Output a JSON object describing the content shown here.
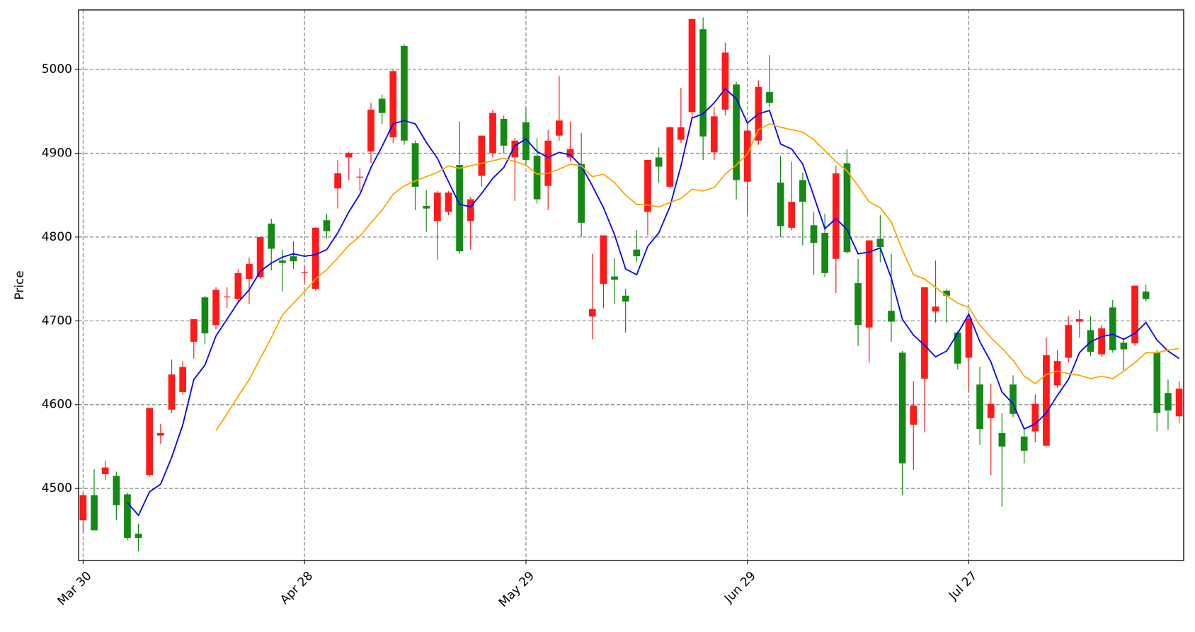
{
  "chart_data": {
    "type": "candlestick",
    "ylabel": "Price",
    "grid": true,
    "up_color": "#ff1a1a",
    "down_color": "#148a14",
    "ylim": [
      4414,
      5071
    ],
    "yticks": [
      4500,
      4600,
      4700,
      4800,
      4900,
      5000
    ],
    "categories": [
      "Mar 30",
      null,
      null,
      null,
      null,
      null,
      null,
      null,
      null,
      null,
      null,
      null,
      null,
      null,
      null,
      null,
      null,
      null,
      null,
      null,
      "Apr 28",
      null,
      null,
      null,
      null,
      null,
      null,
      null,
      null,
      null,
      null,
      null,
      null,
      null,
      null,
      null,
      null,
      null,
      null,
      null,
      "May 29",
      null,
      null,
      null,
      null,
      null,
      null,
      null,
      null,
      null,
      null,
      null,
      null,
      null,
      null,
      null,
      null,
      null,
      null,
      null,
      "Jun 29",
      null,
      null,
      null,
      null,
      null,
      null,
      null,
      null,
      null,
      null,
      null,
      null,
      null,
      null,
      null,
      null,
      null,
      null,
      null,
      "Jul 27",
      null,
      null,
      null,
      null,
      null,
      null,
      null,
      null,
      null,
      null,
      null,
      null,
      null,
      null,
      null,
      null,
      null,
      null,
      null
    ],
    "open": [
      4462,
      4492,
      4517,
      4515,
      4493,
      4446,
      4516,
      4563,
      4594,
      4615,
      4675,
      4728,
      4695,
      4728,
      4726,
      4750,
      4752,
      4816,
      4772,
      4777,
      4757,
      4738,
      4820,
      4858,
      4895,
      4871,
      4902,
      4965,
      4919,
      5028,
      4912,
      4837,
      4819,
      4830,
      4886,
      4819,
      4873,
      4900,
      4941,
      4895,
      4937,
      4897,
      4861,
      4921,
      4895,
      4887,
      4705,
      4744,
      4753,
      4730,
      4785,
      4830,
      4895,
      4860,
      4916,
      4949,
      5048,
      4901,
      4952,
      4982,
      4866,
      4915,
      4973,
      4865,
      4811,
      4868,
      4814,
      4805,
      4774,
      4888,
      4745,
      4692,
      4798,
      4712,
      4662,
      4576,
      4631,
      4711,
      4736,
      4686,
      4656,
      4624,
      4584,
      4566,
      4624,
      4562,
      4568,
      4551,
      4623,
      4656,
      4699,
      4689,
      4660,
      4716,
      4674,
      4673,
      4735,
      4662,
      4614,
      4586
    ],
    "high": [
      4496,
      4523,
      4533,
      4520,
      4495,
      4458,
      4596,
      4577,
      4654,
      4652,
      4702,
      4730,
      4740,
      4740,
      4762,
      4775,
      4800,
      4822,
      4785,
      4795,
      4765,
      4812,
      4828,
      4892,
      4902,
      4882,
      4960,
      4970,
      5000,
      5030,
      4915,
      4856,
      4855,
      4855,
      4938,
      4848,
      4921,
      4952,
      4945,
      4918,
      4955,
      4918,
      4928,
      4992,
      4938,
      4924,
      4780,
      4802,
      4775,
      4738,
      4808,
      4892,
      4907,
      4932,
      4978,
      5060,
      5062,
      4955,
      5032,
      4985,
      4935,
      4987,
      5017,
      4897,
      4890,
      4877,
      4830,
      4828,
      4885,
      4905,
      4774,
      4796,
      4826,
      4780,
      4664,
      4628,
      4740,
      4772,
      4738,
      4688,
      4705,
      4645,
      4625,
      4590,
      4635,
      4570,
      4612,
      4680,
      4665,
      4706,
      4713,
      4706,
      4695,
      4725,
      4680,
      4742,
      4743,
      4665,
      4630,
      4628
    ],
    "low": [
      4448,
      4450,
      4510,
      4462,
      4438,
      4425,
      4514,
      4553,
      4590,
      4612,
      4655,
      4672,
      4690,
      4715,
      4722,
      4720,
      4750,
      4760,
      4735,
      4762,
      4745,
      4736,
      4798,
      4834,
      4868,
      4855,
      4888,
      4935,
      4912,
      4910,
      4832,
      4806,
      4773,
      4826,
      4780,
      4785,
      4860,
      4895,
      4900,
      4843,
      4885,
      4840,
      4832,
      4915,
      4890,
      4800,
      4678,
      4715,
      4720,
      4686,
      4770,
      4802,
      4865,
      4858,
      4912,
      4940,
      4892,
      4892,
      4945,
      4845,
      4826,
      4910,
      4955,
      4800,
      4808,
      4790,
      4755,
      4752,
      4733,
      4780,
      4670,
      4650,
      4770,
      4675,
      4492,
      4522,
      4567,
      4698,
      4698,
      4642,
      4615,
      4552,
      4516,
      4478,
      4585,
      4530,
      4555,
      4550,
      4620,
      4650,
      4680,
      4658,
      4657,
      4662,
      4640,
      4670,
      4723,
      4568,
      4570,
      4578
    ],
    "close": [
      4492,
      4450,
      4525,
      4480,
      4441,
      4441,
      4596,
      4566,
      4636,
      4645,
      4702,
      4685,
      4737,
      4729,
      4757,
      4768,
      4800,
      4786,
      4769,
      4771,
      4758,
      4811,
      4807,
      4876,
      4900,
      4872,
      4952,
      4948,
      4998,
      4915,
      4860,
      4834,
      4853,
      4853,
      4783,
      4845,
      4921,
      4948,
      4909,
      4915,
      4892,
      4845,
      4915,
      4939,
      4905,
      4817,
      4714,
      4802,
      4749,
      4723,
      4777,
      4892,
      4884,
      4931,
      4931,
      5060,
      4920,
      4944,
      5020,
      4868,
      4927,
      4979,
      4960,
      4813,
      4842,
      4842,
      4793,
      4757,
      4876,
      4782,
      4695,
      4796,
      4788,
      4699,
      4530,
      4599,
      4740,
      4717,
      4730,
      4649,
      4703,
      4571,
      4601,
      4550,
      4589,
      4545,
      4601,
      4659,
      4652,
      4695,
      4702,
      4663,
      4691,
      4665,
      4666,
      4742,
      4726,
      4590,
      4593,
      4619
    ],
    "moving_averages": [
      {
        "color": "#0000ff",
        "values": [
          null,
          null,
          null,
          null,
          4483,
          4468,
          4496,
          4505,
          4537,
          4576,
          4630,
          4647,
          4682,
          4702,
          4722,
          4737,
          4759,
          4769,
          4776,
          4780,
          4777,
          4779,
          4785,
          4805,
          4830,
          4851,
          4883,
          4908,
          4935,
          4939,
          4935,
          4913,
          4894,
          4866,
          4839,
          4836,
          4852,
          4870,
          4883,
          4909,
          4917,
          4902,
          4895,
          4901,
          4898,
          4885,
          4861,
          4835,
          4803,
          4762,
          4755,
          4789,
          4805,
          4836,
          4885,
          4942,
          4947,
          4960,
          4977,
          4965,
          4936,
          4947,
          4951,
          4911,
          4905,
          4887,
          4849,
          4810,
          4822,
          4809,
          4780,
          4782,
          4787,
          4751,
          4702,
          4683,
          4671,
          4657,
          4664,
          4685,
          4708,
          4675,
          4651,
          4615,
          4601,
          4571,
          4577,
          4590,
          4611,
          4630,
          4662,
          4675,
          4681,
          4684,
          4678,
          4685,
          4698,
          4677,
          4664,
          4655
        ]
      },
      {
        "color": "#ffa500",
        "values": [
          null,
          null,
          null,
          null,
          null,
          null,
          null,
          null,
          null,
          null,
          null,
          null,
          4569,
          4589,
          4610,
          4630,
          4655,
          4680,
          4707,
          4721,
          4735,
          4750,
          4761,
          4775,
          4790,
          4801,
          4817,
          4832,
          4851,
          4861,
          4867,
          4872,
          4877,
          4885,
          4882,
          4885,
          4888,
          4891,
          4894,
          4890,
          4886,
          4875,
          4876,
          4881,
          4887,
          4885,
          4872,
          4875,
          4865,
          4850,
          4839,
          4838,
          4836,
          4841,
          4846,
          4857,
          4855,
          4859,
          4875,
          4886,
          4899,
          4928,
          4935,
          4931,
          4928,
          4925,
          4916,
          4903,
          4890,
          4879,
          4861,
          4842,
          4835,
          4818,
          4785,
          4755,
          4750,
          4740,
          4730,
          4721,
          4716,
          4695,
          4680,
          4667,
          4653,
          4634,
          4625,
          4636,
          4640,
          4637,
          4635,
          4631,
          4634,
          4631,
          4640,
          4650,
          4662,
          4662,
          4665,
          4667
        ]
      }
    ]
  }
}
